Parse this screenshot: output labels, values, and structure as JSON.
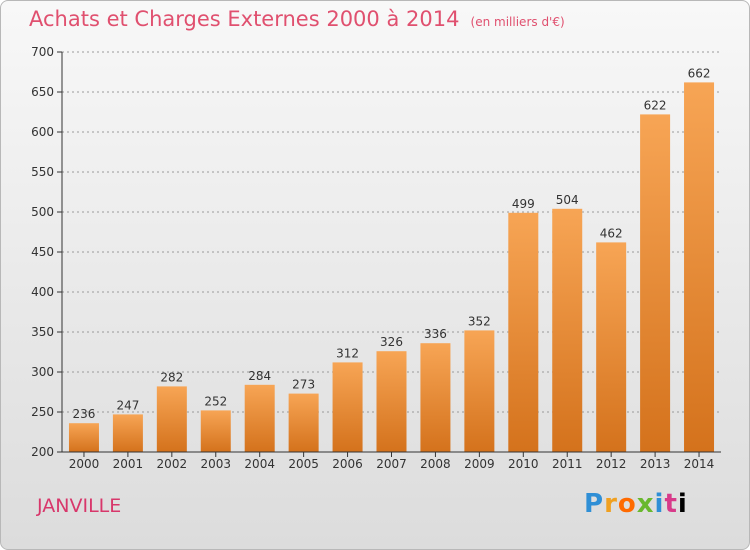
{
  "title": "Achats et Charges Externes 2000 à 2014",
  "unit_note": "(en milliers d'€)",
  "commune": "JANVILLE",
  "logo_text": "Proxiti",
  "colors": {
    "title": "#e0506f",
    "bar_light": "#f7a555",
    "bar_dark": "#d4721c",
    "axis": "#333333",
    "grid": "#9a9a9a"
  },
  "chart_data": {
    "type": "bar",
    "title": "Achats et Charges Externes 2000 à 2014",
    "categories": [
      "2000",
      "2001",
      "2002",
      "2003",
      "2004",
      "2005",
      "2006",
      "2007",
      "2008",
      "2009",
      "2010",
      "2011",
      "2012",
      "2013",
      "2014"
    ],
    "values": [
      236,
      247,
      282,
      252,
      284,
      273,
      312,
      326,
      336,
      352,
      499,
      504,
      462,
      622,
      662
    ],
    "ylim": [
      200,
      700
    ],
    "yticks": [
      200,
      250,
      300,
      350,
      400,
      450,
      500,
      550,
      600,
      650,
      700
    ],
    "grid": true,
    "xlabel": "",
    "ylabel": ""
  }
}
